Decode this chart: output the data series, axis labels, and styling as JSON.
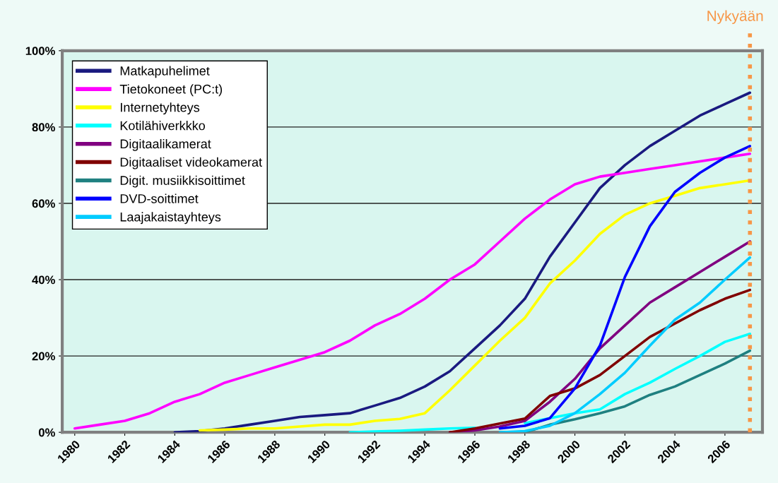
{
  "chart_data": {
    "type": "line",
    "x": [
      1980,
      1981,
      1982,
      1983,
      1984,
      1985,
      1986,
      1987,
      1988,
      1989,
      1990,
      1991,
      1992,
      1993,
      1994,
      1995,
      1996,
      1997,
      1998,
      1999,
      2000,
      2001,
      2002,
      2003,
      2004,
      2005,
      2006,
      2007
    ],
    "series": [
      {
        "name": "Matkapuhelimet",
        "color": "#1a1a80",
        "values": [
          null,
          null,
          null,
          null,
          0,
          0.3,
          1,
          2,
          3,
          4,
          4.5,
          5,
          7,
          9,
          12,
          16,
          22,
          28,
          35,
          46,
          55,
          64,
          70,
          75,
          79,
          83,
          86,
          89
        ]
      },
      {
        "name": "Tietokoneet (PC:t)",
        "color": "#ff00ff",
        "values": [
          1,
          2,
          3,
          5,
          8,
          10,
          13,
          15,
          17,
          19,
          21,
          24,
          28,
          31,
          35,
          40,
          44,
          50,
          56,
          61,
          65,
          67,
          68,
          69,
          70,
          71,
          72,
          73
        ]
      },
      {
        "name": "Internetyhteys",
        "color": "#ffff00",
        "values": [
          null,
          null,
          null,
          null,
          null,
          0.5,
          0.7,
          1,
          1,
          1.5,
          2,
          2,
          3,
          3.5,
          5,
          11,
          17.5,
          24,
          30,
          39,
          45,
          52,
          57,
          60,
          62,
          64,
          65,
          66
        ]
      },
      {
        "name": "Kotilähiverkkko",
        "color": "#00ffff",
        "values": [
          null,
          null,
          null,
          null,
          null,
          null,
          null,
          null,
          null,
          null,
          null,
          0,
          0.2,
          0.4,
          0.7,
          1,
          1.2,
          null,
          2.4,
          3.7,
          5,
          6,
          10,
          13,
          16.6,
          20,
          23.7,
          25.8
        ]
      },
      {
        "name": "Digitaalikamerat",
        "color": "#800080",
        "values": [
          null,
          null,
          null,
          null,
          null,
          null,
          null,
          null,
          null,
          null,
          null,
          null,
          null,
          null,
          null,
          0,
          0.5,
          1.5,
          3,
          8,
          14,
          22,
          28,
          34,
          38,
          42,
          46,
          50
        ]
      },
      {
        "name": "Digitaaliset videokamerat",
        "color": "#800000",
        "values": [
          null,
          null,
          null,
          null,
          null,
          null,
          null,
          null,
          null,
          null,
          null,
          null,
          null,
          null,
          null,
          0,
          1,
          2.3,
          3.6,
          9.5,
          11.5,
          15,
          20,
          25,
          28.5,
          32,
          35,
          37.3
        ]
      },
      {
        "name": "Digit. musiikkisoittimet",
        "color": "#1f8080",
        "values": [
          null,
          null,
          null,
          null,
          null,
          null,
          null,
          null,
          null,
          null,
          null,
          null,
          null,
          null,
          null,
          null,
          null,
          null,
          0,
          2,
          3.4,
          5,
          6.8,
          9.8,
          12,
          15,
          18,
          21.4
        ]
      },
      {
        "name": "DVD-soittimet",
        "color": "#0000ff",
        "values": [
          null,
          null,
          null,
          null,
          null,
          null,
          null,
          null,
          null,
          null,
          null,
          null,
          null,
          null,
          null,
          null,
          null,
          1,
          1.7,
          3.7,
          11.5,
          22.7,
          40.7,
          54,
          63,
          68,
          72,
          75
        ]
      },
      {
        "name": "Laajakaistayhteys",
        "color": "#00ccff",
        "values": [
          null,
          null,
          null,
          null,
          null,
          null,
          null,
          null,
          null,
          null,
          null,
          null,
          null,
          null,
          null,
          null,
          null,
          0,
          0.3,
          1.7,
          5,
          10,
          15.6,
          22.7,
          29.5,
          34,
          40,
          45.8
        ]
      }
    ],
    "xlim": [
      1979.5,
      2007.5
    ],
    "xticks": [
      1980,
      1982,
      1984,
      1986,
      1988,
      1990,
      1992,
      1994,
      1996,
      1998,
      2000,
      2002,
      2004,
      2006
    ],
    "ylim": [
      0,
      100
    ],
    "yticks": [
      {
        "value": 0,
        "label": "0%"
      },
      {
        "value": 20,
        "label": "20%"
      },
      {
        "value": 40,
        "label": "40%"
      },
      {
        "value": 60,
        "label": "60%"
      },
      {
        "value": 80,
        "label": "80%"
      },
      {
        "value": 100,
        "label": "100%"
      }
    ],
    "ref_lines": [
      {
        "axis": "x",
        "value": 2007,
        "label": "Nykyään",
        "color": "#f79646",
        "line_style": "dotted"
      }
    ],
    "grid": "y",
    "legend": "top left",
    "marker": "none",
    "line_style": "solid"
  }
}
